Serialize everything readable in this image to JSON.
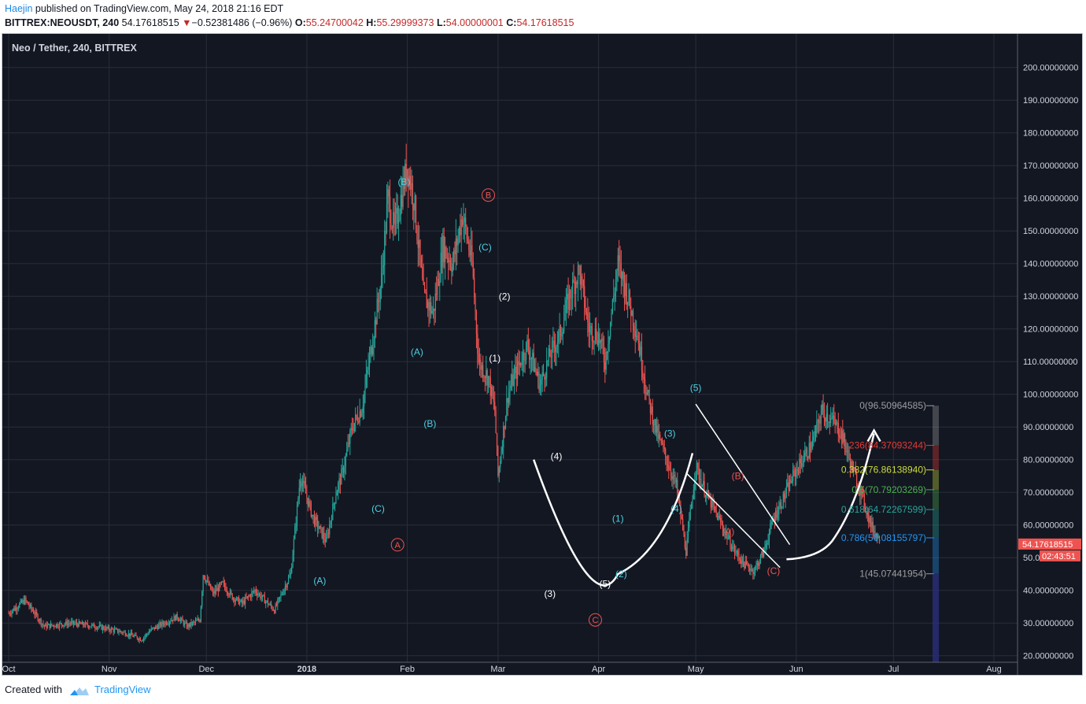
{
  "header": {
    "author": "Haejin",
    "published_text": "published on TradingView.com, May 24, 2018 21:16 EDT",
    "symbol": "BITTREX:NEOUSDT, 240",
    "last": "54.17618515",
    "change_arrow": "▼",
    "change": "−0.52381486 (−0.96%)",
    "o_label": "O:",
    "o_value": "55.24700042",
    "h_label": "H:",
    "h_value": "55.29999373",
    "l_label": "L:",
    "l_value": "54.00000001",
    "c_label": "C:",
    "c_value": "54.17618515"
  },
  "footer": {
    "created_with": "Created with",
    "brand": "TradingView",
    "logo_icon": "tradingview-cloud-icon"
  },
  "colors": {
    "background": "#131722",
    "grid": "#2a2e39",
    "up": "#26a69a",
    "down": "#ef5350",
    "cyan_label": "#4dd0e1",
    "white_label": "#ffffff",
    "red_label": "#ef5350",
    "price_tag": "#ef5350"
  },
  "chart_data": {
    "type": "candlestick",
    "title": "Neo / Tether, 240, BITTREX",
    "ylim": [
      18,
      205
    ],
    "y_ticks": [
      "200.00000000",
      "190.00000000",
      "180.00000000",
      "170.00000000",
      "160.00000000",
      "150.00000000",
      "140.00000000",
      "130.00000000",
      "120.00000000",
      "110.00000000",
      "100.00000000",
      "90.00000000",
      "80.00000000",
      "70.00000000",
      "60.00000000",
      "50.00000000",
      "40.00000000",
      "30.00000000",
      "20.00000000"
    ],
    "y_tick_values": [
      200,
      190,
      180,
      170,
      160,
      150,
      140,
      130,
      120,
      110,
      100,
      90,
      80,
      70,
      60,
      50,
      40,
      30,
      20
    ],
    "x_labels": [
      "Oct",
      "Nov",
      "Dec",
      "2018",
      "Feb",
      "Mar",
      "Apr",
      "May",
      "Jun",
      "Jul",
      "Aug"
    ],
    "x_label_dates": [
      "2017-10-01",
      "2017-11-01",
      "2017-12-01",
      "2018-01-01",
      "2018-02-01",
      "2018-03-01",
      "2018-04-01",
      "2018-05-01",
      "2018-06-01",
      "2018-07-01",
      "2018-08-01"
    ],
    "x_range": [
      "2017-10-01",
      "2018-08-01"
    ],
    "price_path": [
      [
        "2017-10-01",
        33
      ],
      [
        "2017-10-06",
        37
      ],
      [
        "2017-10-12",
        29
      ],
      [
        "2017-10-20",
        30
      ],
      [
        "2017-10-28",
        29
      ],
      [
        "2017-11-06",
        27
      ],
      [
        "2017-11-11",
        25
      ],
      [
        "2017-11-14",
        28
      ],
      [
        "2017-11-22",
        32
      ],
      [
        "2017-11-25",
        29
      ],
      [
        "2017-11-29",
        31
      ],
      [
        "2017-11-30",
        45
      ],
      [
        "2017-12-03",
        39
      ],
      [
        "2017-12-06",
        42
      ],
      [
        "2017-12-09",
        38
      ],
      [
        "2017-12-12",
        36
      ],
      [
        "2017-12-16",
        40
      ],
      [
        "2017-12-22",
        34
      ],
      [
        "2017-12-27",
        45
      ],
      [
        "2017-12-30",
        75
      ],
      [
        "2018-01-03",
        62
      ],
      [
        "2018-01-07",
        55
      ],
      [
        "2018-01-10",
        70
      ],
      [
        "2018-01-12",
        76
      ],
      [
        "2018-01-15",
        90
      ],
      [
        "2018-01-18",
        96
      ],
      [
        "2018-01-21",
        115
      ],
      [
        "2018-01-24",
        135
      ],
      [
        "2018-01-26",
        160
      ],
      [
        "2018-01-28",
        150
      ],
      [
        "2018-02-01",
        170
      ],
      [
        "2018-02-03",
        160
      ],
      [
        "2018-02-06",
        130
      ],
      [
        "2018-02-09",
        125
      ],
      [
        "2018-02-12",
        145
      ],
      [
        "2018-02-15",
        140
      ],
      [
        "2018-02-18",
        155
      ],
      [
        "2018-02-21",
        140
      ],
      [
        "2018-02-23",
        110
      ],
      [
        "2018-02-26",
        105
      ],
      [
        "2018-02-28",
        95
      ],
      [
        "2018-03-01",
        75
      ],
      [
        "2018-03-04",
        100
      ],
      [
        "2018-03-07",
        108
      ],
      [
        "2018-03-10",
        115
      ],
      [
        "2018-03-14",
        103
      ],
      [
        "2018-03-17",
        112
      ],
      [
        "2018-03-20",
        118
      ],
      [
        "2018-03-23",
        130
      ],
      [
        "2018-03-26",
        138
      ],
      [
        "2018-03-29",
        120
      ],
      [
        "2018-04-01",
        118
      ],
      [
        "2018-04-03",
        110
      ],
      [
        "2018-04-05",
        125
      ],
      [
        "2018-04-07",
        140
      ],
      [
        "2018-04-10",
        130
      ],
      [
        "2018-04-13",
        118
      ],
      [
        "2018-04-16",
        100
      ],
      [
        "2018-04-19",
        88
      ],
      [
        "2018-04-22",
        80
      ],
      [
        "2018-04-25",
        72
      ],
      [
        "2018-04-28",
        52
      ],
      [
        "2018-05-01",
        78
      ],
      [
        "2018-05-04",
        70
      ],
      [
        "2018-05-07",
        64
      ],
      [
        "2018-05-10",
        58
      ],
      [
        "2018-05-13",
        52
      ],
      [
        "2018-05-16",
        48
      ],
      [
        "2018-05-19",
        46
      ],
      [
        "2018-05-22",
        52
      ],
      [
        "2018-05-25",
        62
      ],
      [
        "2018-05-28",
        68
      ],
      [
        "2018-05-31",
        75
      ],
      [
        "2018-06-03",
        80
      ],
      [
        "2018-06-06",
        85
      ],
      [
        "2018-06-09",
        95
      ],
      [
        "2018-06-12",
        92
      ],
      [
        "2018-06-15",
        88
      ],
      [
        "2018-06-18",
        78
      ],
      [
        "2018-06-21",
        70
      ],
      [
        "2018-06-24",
        60
      ],
      [
        "2018-06-27",
        55
      ]
    ],
    "last_price_label": "54.17618515",
    "countdown_label": "02:43:51",
    "last_price_value": 54.17618515,
    "fib_levels": [
      {
        "label": "0(96.50964585)",
        "value": 96.50964585,
        "color": "#9e9e9e"
      },
      {
        "label": "0.236(84.37093244)",
        "value": 84.37093244,
        "color": "#e53935"
      },
      {
        "label": "0.382(76.86138940)",
        "value": 76.8613894,
        "color": "#cddc39"
      },
      {
        "label": "0.5(70.79203269)",
        "value": 70.79203269,
        "color": "#4caf50"
      },
      {
        "label": "0.618(64.72267599)",
        "value": 64.72267599,
        "color": "#26a69a"
      },
      {
        "label": "0.786(56.08155797)",
        "value": 56.08155797,
        "color": "#2196f3"
      },
      {
        "label": "1(45.07441954)",
        "value": 45.07441954,
        "color": "#9e9e9e"
      }
    ],
    "wave_labels": [
      {
        "text": "(A)",
        "color": "cyan",
        "x": "2018-01-05",
        "y": 42
      },
      {
        "text": "(B)",
        "color": "cyan",
        "x": "2018-01-31",
        "y": 164
      },
      {
        "text": "(A)",
        "color": "cyan",
        "x": "2018-02-04",
        "y": 112
      },
      {
        "text": "(B)",
        "color": "cyan",
        "x": "2018-02-08",
        "y": 90
      },
      {
        "text": "(C)",
        "color": "cyan",
        "x": "2018-01-23",
        "y": 64
      },
      {
        "text": "(C)",
        "color": "cyan",
        "x": "2018-02-25",
        "y": 144
      },
      {
        "text": "(1)",
        "color": "white",
        "x": "2018-02-28",
        "y": 110
      },
      {
        "text": "(2)",
        "color": "white",
        "x": "2018-03-03",
        "y": 129
      },
      {
        "text": "(4)",
        "color": "white",
        "x": "2018-03-19",
        "y": 80
      },
      {
        "text": "(3)",
        "color": "white",
        "x": "2018-03-17",
        "y": 38
      },
      {
        "text": "(5)",
        "color": "white",
        "x": "2018-04-03",
        "y": 41
      },
      {
        "text": "(2)",
        "color": "cyan",
        "x": "2018-04-08",
        "y": 44
      },
      {
        "text": "(1)",
        "color": "cyan",
        "x": "2018-04-07",
        "y": 61
      },
      {
        "text": "(3)",
        "color": "cyan",
        "x": "2018-04-23",
        "y": 87
      },
      {
        "text": "(4)",
        "color": "cyan",
        "x": "2018-04-25",
        "y": 64
      },
      {
        "text": "(5)",
        "color": "cyan",
        "x": "2018-05-01",
        "y": 101
      },
      {
        "text": "(B)",
        "color": "red",
        "x": "2018-05-14",
        "y": 74
      },
      {
        "text": "(A)",
        "color": "red",
        "x": "2018-05-11",
        "y": 57
      },
      {
        "text": "(C)",
        "color": "red",
        "x": "2018-05-25",
        "y": 45
      }
    ],
    "circled_labels": [
      {
        "text": "A",
        "x": "2018-01-29",
        "y": 53
      },
      {
        "text": "B",
        "x": "2018-02-26",
        "y": 160
      },
      {
        "text": "C",
        "x": "2018-03-31",
        "y": 30
      }
    ]
  }
}
